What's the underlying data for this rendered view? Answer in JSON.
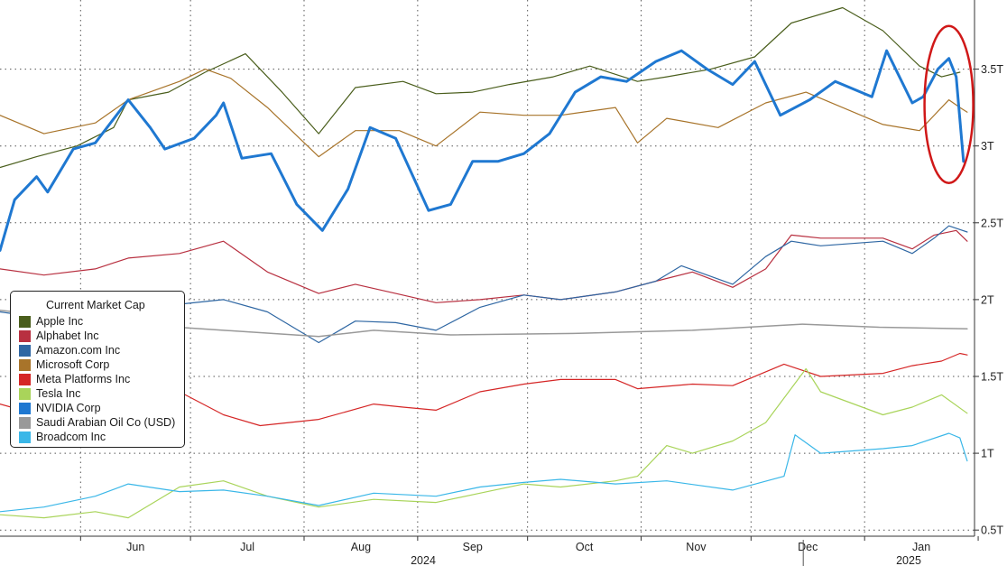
{
  "chart_data": {
    "type": "line",
    "title": "",
    "xlabel": "",
    "ylabel": "",
    "x_tick_labels": [
      "Jun",
      "Jul",
      "Aug",
      "Sep",
      "Oct",
      "Nov",
      "Dec",
      "Jan"
    ],
    "x_year_labels": [
      "2024",
      "2025"
    ],
    "y_tick_labels": [
      "0.5T",
      "1T",
      "1.5T",
      "2T",
      "2.5T",
      "3T",
      "3.5T"
    ],
    "y_ticks": [
      0.5,
      1,
      1.5,
      2,
      2.5,
      3,
      3.5
    ],
    "ylim": [
      0.46,
      3.95
    ],
    "x_range": [
      "2024-05-10",
      "2025-01-31"
    ],
    "legend_title": "Current Market Cap",
    "legend_position": "left",
    "grid": true,
    "series": [
      {
        "name": "Apple Inc",
        "color": "#4a5e1c",
        "width": 1.2,
        "points": [
          [
            "2024-05-10",
            2.86
          ],
          [
            "2024-05-20",
            2.93
          ],
          [
            "2024-05-31",
            3.0
          ],
          [
            "2024-06-10",
            3.12
          ],
          [
            "2024-06-14",
            3.3
          ],
          [
            "2024-06-25",
            3.35
          ],
          [
            "2024-07-05",
            3.48
          ],
          [
            "2024-07-16",
            3.6
          ],
          [
            "2024-07-26",
            3.35
          ],
          [
            "2024-08-05",
            3.08
          ],
          [
            "2024-08-15",
            3.38
          ],
          [
            "2024-08-28",
            3.42
          ],
          [
            "2024-09-06",
            3.34
          ],
          [
            "2024-09-16",
            3.35
          ],
          [
            "2024-09-26",
            3.4
          ],
          [
            "2024-10-08",
            3.45
          ],
          [
            "2024-10-18",
            3.52
          ],
          [
            "2024-10-31",
            3.42
          ],
          [
            "2024-11-08",
            3.45
          ],
          [
            "2024-11-20",
            3.5
          ],
          [
            "2024-12-02",
            3.58
          ],
          [
            "2024-12-12",
            3.8
          ],
          [
            "2024-12-26",
            3.9
          ],
          [
            "2025-01-06",
            3.75
          ],
          [
            "2025-01-16",
            3.52
          ],
          [
            "2025-01-22",
            3.45
          ],
          [
            "2025-01-27",
            3.48
          ]
        ]
      },
      {
        "name": "Microsoft Corp",
        "color": "#a8742a",
        "width": 1.2,
        "points": [
          [
            "2024-05-10",
            3.2
          ],
          [
            "2024-05-22",
            3.08
          ],
          [
            "2024-06-05",
            3.15
          ],
          [
            "2024-06-14",
            3.3
          ],
          [
            "2024-06-28",
            3.42
          ],
          [
            "2024-07-05",
            3.5
          ],
          [
            "2024-07-12",
            3.44
          ],
          [
            "2024-07-22",
            3.25
          ],
          [
            "2024-08-05",
            2.93
          ],
          [
            "2024-08-15",
            3.1
          ],
          [
            "2024-08-27",
            3.1
          ],
          [
            "2024-09-06",
            3.0
          ],
          [
            "2024-09-18",
            3.22
          ],
          [
            "2024-09-30",
            3.2
          ],
          [
            "2024-10-10",
            3.2
          ],
          [
            "2024-10-25",
            3.25
          ],
          [
            "2024-10-31",
            3.02
          ],
          [
            "2024-11-08",
            3.18
          ],
          [
            "2024-11-22",
            3.12
          ],
          [
            "2024-12-05",
            3.28
          ],
          [
            "2024-12-16",
            3.35
          ],
          [
            "2025-01-06",
            3.14
          ],
          [
            "2025-01-16",
            3.1
          ],
          [
            "2025-01-24",
            3.3
          ],
          [
            "2025-01-27",
            3.25
          ],
          [
            "2025-01-29",
            3.22
          ]
        ]
      },
      {
        "name": "NVIDIA Corp",
        "color": "#1f78d1",
        "width": 3,
        "points": [
          [
            "2024-05-10",
            2.32
          ],
          [
            "2024-05-14",
            2.65
          ],
          [
            "2024-05-20",
            2.8
          ],
          [
            "2024-05-23",
            2.7
          ],
          [
            "2024-05-30",
            2.98
          ],
          [
            "2024-06-05",
            3.02
          ],
          [
            "2024-06-14",
            3.3
          ],
          [
            "2024-06-20",
            3.12
          ],
          [
            "2024-06-24",
            2.98
          ],
          [
            "2024-07-02",
            3.05
          ],
          [
            "2024-07-08",
            3.2
          ],
          [
            "2024-07-10",
            3.28
          ],
          [
            "2024-07-15",
            2.92
          ],
          [
            "2024-07-23",
            2.95
          ],
          [
            "2024-07-30",
            2.62
          ],
          [
            "2024-08-06",
            2.45
          ],
          [
            "2024-08-13",
            2.72
          ],
          [
            "2024-08-19",
            3.12
          ],
          [
            "2024-08-26",
            3.05
          ],
          [
            "2024-09-04",
            2.58
          ],
          [
            "2024-09-10",
            2.62
          ],
          [
            "2024-09-16",
            2.9
          ],
          [
            "2024-09-23",
            2.9
          ],
          [
            "2024-09-30",
            2.95
          ],
          [
            "2024-10-07",
            3.08
          ],
          [
            "2024-10-14",
            3.35
          ],
          [
            "2024-10-21",
            3.45
          ],
          [
            "2024-10-28",
            3.42
          ],
          [
            "2024-11-05",
            3.55
          ],
          [
            "2024-11-12",
            3.62
          ],
          [
            "2024-11-19",
            3.5
          ],
          [
            "2024-11-26",
            3.4
          ],
          [
            "2024-12-02",
            3.55
          ],
          [
            "2024-12-09",
            3.2
          ],
          [
            "2024-12-17",
            3.3
          ],
          [
            "2024-12-24",
            3.42
          ],
          [
            "2025-01-03",
            3.32
          ],
          [
            "2025-01-07",
            3.62
          ],
          [
            "2025-01-14",
            3.28
          ],
          [
            "2025-01-17",
            3.32
          ],
          [
            "2025-01-21",
            3.5
          ],
          [
            "2025-01-24",
            3.57
          ],
          [
            "2025-01-26",
            3.45
          ],
          [
            "2025-01-28",
            2.9
          ]
        ]
      },
      {
        "name": "Alphabet Inc",
        "color": "#b83040",
        "width": 1.2,
        "points": [
          [
            "2024-05-10",
            2.2
          ],
          [
            "2024-05-22",
            2.16
          ],
          [
            "2024-06-05",
            2.2
          ],
          [
            "2024-06-14",
            2.27
          ],
          [
            "2024-06-28",
            2.3
          ],
          [
            "2024-07-10",
            2.38
          ],
          [
            "2024-07-22",
            2.18
          ],
          [
            "2024-08-05",
            2.04
          ],
          [
            "2024-08-15",
            2.1
          ],
          [
            "2024-08-26",
            2.04
          ],
          [
            "2024-09-06",
            1.98
          ],
          [
            "2024-09-18",
            2.0
          ],
          [
            "2024-09-30",
            2.03
          ],
          [
            "2024-10-10",
            2.0
          ],
          [
            "2024-10-25",
            2.05
          ],
          [
            "2024-11-05",
            2.12
          ],
          [
            "2024-11-15",
            2.18
          ],
          [
            "2024-11-26",
            2.08
          ],
          [
            "2024-12-05",
            2.2
          ],
          [
            "2024-12-12",
            2.42
          ],
          [
            "2024-12-20",
            2.4
          ],
          [
            "2025-01-06",
            2.4
          ],
          [
            "2025-01-14",
            2.33
          ],
          [
            "2025-01-20",
            2.42
          ],
          [
            "2025-01-26",
            2.45
          ],
          [
            "2025-01-29",
            2.38
          ]
        ]
      },
      {
        "name": "Amazon.com Inc",
        "color": "#2f67a3",
        "width": 1.2,
        "points": [
          [
            "2024-05-10",
            1.92
          ],
          [
            "2024-05-22",
            1.88
          ],
          [
            "2024-06-05",
            1.9
          ],
          [
            "2024-06-14",
            1.95
          ],
          [
            "2024-06-28",
            1.97
          ],
          [
            "2024-07-10",
            2.0
          ],
          [
            "2024-07-22",
            1.92
          ],
          [
            "2024-08-05",
            1.72
          ],
          [
            "2024-08-15",
            1.86
          ],
          [
            "2024-08-26",
            1.85
          ],
          [
            "2024-09-06",
            1.8
          ],
          [
            "2024-09-18",
            1.95
          ],
          [
            "2024-09-30",
            2.03
          ],
          [
            "2024-10-10",
            2.0
          ],
          [
            "2024-10-25",
            2.05
          ],
          [
            "2024-11-05",
            2.12
          ],
          [
            "2024-11-12",
            2.22
          ],
          [
            "2024-11-26",
            2.1
          ],
          [
            "2024-12-05",
            2.28
          ],
          [
            "2024-12-12",
            2.38
          ],
          [
            "2024-12-20",
            2.35
          ],
          [
            "2025-01-06",
            2.38
          ],
          [
            "2025-01-14",
            2.3
          ],
          [
            "2025-01-20",
            2.4
          ],
          [
            "2025-01-24",
            2.48
          ],
          [
            "2025-01-29",
            2.44
          ]
        ]
      },
      {
        "name": "Saudi Arabian Oil Co (USD)",
        "color": "#999999",
        "width": 1.5,
        "points": [
          [
            "2024-05-10",
            1.93
          ],
          [
            "2024-06-15",
            1.84
          ],
          [
            "2024-07-10",
            1.8
          ],
          [
            "2024-08-05",
            1.76
          ],
          [
            "2024-08-20",
            1.8
          ],
          [
            "2024-09-10",
            1.77
          ],
          [
            "2024-10-15",
            1.78
          ],
          [
            "2024-11-15",
            1.8
          ],
          [
            "2024-12-15",
            1.84
          ],
          [
            "2025-01-05",
            1.82
          ],
          [
            "2025-01-29",
            1.81
          ]
        ]
      },
      {
        "name": "Meta Platforms Inc",
        "color": "#d52626",
        "width": 1.2,
        "points": [
          [
            "2024-05-10",
            1.32
          ],
          [
            "2024-05-22",
            1.24
          ],
          [
            "2024-06-05",
            1.28
          ],
          [
            "2024-06-14",
            1.3
          ],
          [
            "2024-06-28",
            1.4
          ],
          [
            "2024-07-10",
            1.25
          ],
          [
            "2024-07-20",
            1.18
          ],
          [
            "2024-08-05",
            1.22
          ],
          [
            "2024-08-20",
            1.32
          ],
          [
            "2024-08-28",
            1.3
          ],
          [
            "2024-09-06",
            1.28
          ],
          [
            "2024-09-18",
            1.4
          ],
          [
            "2024-09-30",
            1.45
          ],
          [
            "2024-10-10",
            1.48
          ],
          [
            "2024-10-25",
            1.48
          ],
          [
            "2024-10-31",
            1.42
          ],
          [
            "2024-11-15",
            1.45
          ],
          [
            "2024-11-26",
            1.44
          ],
          [
            "2024-12-10",
            1.58
          ],
          [
            "2024-12-20",
            1.5
          ],
          [
            "2025-01-06",
            1.52
          ],
          [
            "2025-01-14",
            1.57
          ],
          [
            "2025-01-22",
            1.6
          ],
          [
            "2025-01-27",
            1.65
          ],
          [
            "2025-01-29",
            1.64
          ]
        ]
      },
      {
        "name": "Tesla Inc",
        "color": "#a9d45a",
        "width": 1.2,
        "points": [
          [
            "2024-05-10",
            0.6
          ],
          [
            "2024-05-22",
            0.58
          ],
          [
            "2024-06-05",
            0.62
          ],
          [
            "2024-06-14",
            0.58
          ],
          [
            "2024-06-28",
            0.78
          ],
          [
            "2024-07-10",
            0.82
          ],
          [
            "2024-07-22",
            0.72
          ],
          [
            "2024-08-05",
            0.65
          ],
          [
            "2024-08-20",
            0.7
          ],
          [
            "2024-09-06",
            0.68
          ],
          [
            "2024-09-18",
            0.74
          ],
          [
            "2024-09-30",
            0.8
          ],
          [
            "2024-10-10",
            0.78
          ],
          [
            "2024-10-25",
            0.82
          ],
          [
            "2024-10-31",
            0.85
          ],
          [
            "2024-11-08",
            1.05
          ],
          [
            "2024-11-15",
            1.0
          ],
          [
            "2024-11-26",
            1.08
          ],
          [
            "2024-12-05",
            1.2
          ],
          [
            "2024-12-16",
            1.55
          ],
          [
            "2024-12-20",
            1.4
          ],
          [
            "2025-01-06",
            1.25
          ],
          [
            "2025-01-14",
            1.3
          ],
          [
            "2025-01-22",
            1.38
          ],
          [
            "2025-01-29",
            1.26
          ]
        ]
      },
      {
        "name": "Broadcom Inc",
        "color": "#3ab7e8",
        "width": 1.2,
        "points": [
          [
            "2024-05-10",
            0.62
          ],
          [
            "2024-05-22",
            0.65
          ],
          [
            "2024-06-05",
            0.72
          ],
          [
            "2024-06-14",
            0.8
          ],
          [
            "2024-06-28",
            0.75
          ],
          [
            "2024-07-10",
            0.76
          ],
          [
            "2024-07-22",
            0.72
          ],
          [
            "2024-08-05",
            0.66
          ],
          [
            "2024-08-20",
            0.74
          ],
          [
            "2024-09-06",
            0.72
          ],
          [
            "2024-09-18",
            0.78
          ],
          [
            "2024-09-30",
            0.81
          ],
          [
            "2024-10-10",
            0.83
          ],
          [
            "2024-10-25",
            0.8
          ],
          [
            "2024-11-08",
            0.82
          ],
          [
            "2024-11-26",
            0.76
          ],
          [
            "2024-12-10",
            0.85
          ],
          [
            "2024-12-13",
            1.12
          ],
          [
            "2024-12-20",
            1.0
          ],
          [
            "2025-01-06",
            1.03
          ],
          [
            "2025-01-14",
            1.05
          ],
          [
            "2025-01-24",
            1.13
          ],
          [
            "2025-01-27",
            1.1
          ],
          [
            "2025-01-29",
            0.95
          ]
        ]
      }
    ],
    "annotations": [
      {
        "type": "ellipse",
        "color": "#d01818",
        "target": "NVIDIA Corp",
        "x_center": "2025-01-24",
        "y_center": 3.27
      }
    ]
  }
}
